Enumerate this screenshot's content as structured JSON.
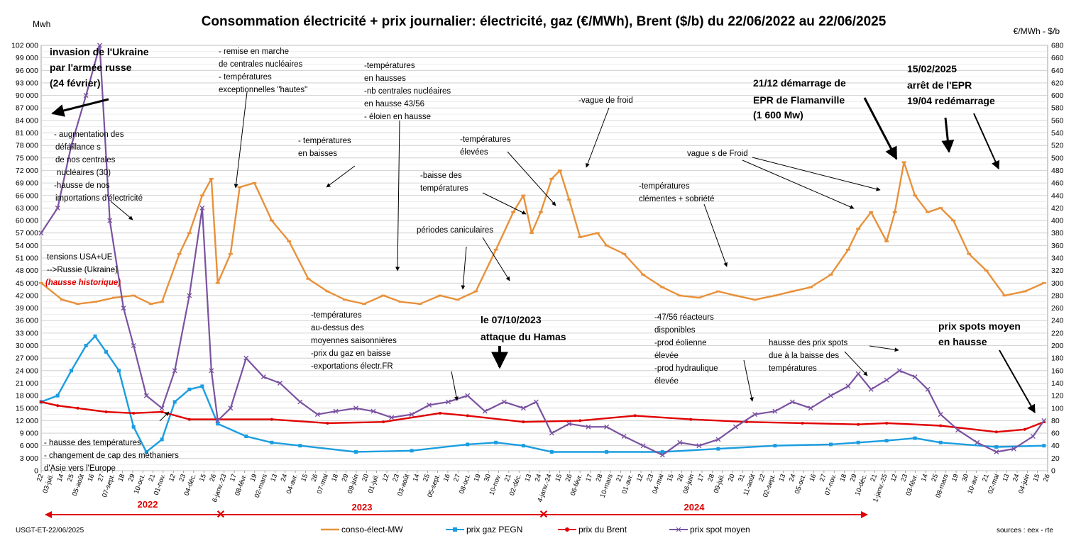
{
  "chart_data": {
    "type": "line",
    "title": "Consommation électricité + prix journalier: électricité, gaz (€/MWh), Brent ($/b) du 22/06/2022 au  22/06/2025",
    "ylabel_left": "Mwh",
    "ylabel_right": "€/MWh - $/b",
    "ylim_left": [
      0,
      102000
    ],
    "ylim_right": [
      0,
      680
    ],
    "yticks_left": [
      "0",
      "3 000",
      "6 000",
      "9 000",
      "12 000",
      "15 000",
      "18 000",
      "21 000",
      "24 000",
      "27 000",
      "30 000",
      "33 000",
      "36 000",
      "39 000",
      "42 000",
      "45 000",
      "48 000",
      "51 000",
      "54 000",
      "57 000",
      "60 000",
      "63 000",
      "66 000",
      "69 000",
      "72 000",
      "75 000",
      "78 000",
      "81 000",
      "84 000",
      "87 000",
      "90 000",
      "93 000",
      "96 000",
      "99 000",
      "102 000"
    ],
    "yticks_right": [
      "0",
      "20",
      "40",
      "60",
      "80",
      "100",
      "120",
      "140",
      "160",
      "180",
      "200",
      "220",
      "240",
      "260",
      "280",
      "300",
      "320",
      "340",
      "360",
      "380",
      "400",
      "420",
      "440",
      "460",
      "480",
      "500",
      "520",
      "540",
      "560",
      "580",
      "600",
      "620",
      "640",
      "660",
      "680"
    ],
    "xticks": [
      "22",
      "03-juil.",
      "14",
      "25",
      "05-août",
      "16",
      "27",
      "07-sept.",
      "18",
      "29",
      "10-oct.",
      "21",
      "01-nov.",
      "12",
      "23",
      "04-déc.",
      "15",
      "26",
      "6-janv.-23",
      "17",
      "08-févr.",
      "19",
      "02-mars",
      "13",
      "24",
      "04-avr.",
      "15",
      "26",
      "07-mai",
      "18",
      "29",
      "09-juin",
      "20",
      "01-juil.",
      "12",
      "23",
      "03-août",
      "14",
      "25",
      "05-sept.",
      "16",
      "27",
      "08-oct.",
      "19",
      "30",
      "10-nov.",
      "21",
      "02-déc.",
      "13",
      "24",
      "4-janv.-24",
      "15",
      "26",
      "06-févr.",
      "17",
      "28",
      "10-mars",
      "21",
      "01-avr.",
      "12",
      "23",
      "04-mai",
      "15",
      "26",
      "06-juin",
      "17",
      "28",
      "09-juil.",
      "20",
      "31",
      "11-août",
      "22",
      "02-sept.",
      "13",
      "24",
      "05-oct.",
      "16",
      "27",
      "07-nov.",
      "18",
      "29",
      "10-déc.",
      "21",
      "1-janv.-25",
      "12",
      "23",
      "03-févr.",
      "14",
      "25",
      "08-mars",
      "19",
      "30",
      "10-avr.",
      "21",
      "02-mai",
      "13",
      "24",
      "04-juin",
      "15",
      "26"
    ],
    "years": [
      "2022",
      "2023",
      "2024"
    ],
    "grid": true,
    "legend_position": "bottom",
    "series": [
      {
        "name": "conso-élect-MW",
        "axis": "left",
        "color": "#e8913a",
        "marker": "dash",
        "x": [
          "22/06/2022",
          "15/07/2022",
          "01/08/2022",
          "20/08/2022",
          "10/09/2022",
          "01/10/2022",
          "20/10/2022",
          "01/11/2022",
          "20/11/2022",
          "01/12/2022",
          "15/12/2022",
          "25/12/2022",
          "01/01/2023",
          "15/01/2023",
          "25/01/2023",
          "10/02/2023",
          "01/03/2023",
          "20/03/2023",
          "10/04/2023",
          "01/05/2023",
          "20/05/2023",
          "10/06/2023",
          "01/07/2023",
          "20/07/2023",
          "10/08/2023",
          "01/09/2023",
          "20/09/2023",
          "10/10/2023",
          "01/11/2023",
          "20/11/2023",
          "01/12/2023",
          "10/12/2023",
          "20/12/2023",
          "01/01/2024",
          "10/01/2024",
          "20/01/2024",
          "01/02/2024",
          "20/02/2024",
          "01/03/2024",
          "20/03/2024",
          "10/04/2024",
          "01/05/2024",
          "20/05/2024",
          "10/06/2024",
          "01/07/2024",
          "20/07/2024",
          "10/08/2024",
          "01/09/2024",
          "20/09/2024",
          "10/10/2024",
          "01/11/2024",
          "20/11/2024",
          "01/12/2024",
          "15/12/2024",
          "01/01/2025",
          "10/01/2025",
          "20/01/2025",
          "01/02/2025",
          "15/02/2025",
          "01/03/2025",
          "15/03/2025",
          "01/04/2025",
          "20/04/2025",
          "10/05/2025",
          "01/06/2025",
          "22/06/2025"
        ],
        "values": [
          45000,
          41000,
          40000,
          40500,
          41500,
          42000,
          40000,
          40500,
          52000,
          57000,
          66000,
          70000,
          45000,
          52000,
          68000,
          69000,
          60000,
          55000,
          46000,
          43000,
          41000,
          40000,
          42000,
          40500,
          40000,
          42000,
          41000,
          43000,
          53000,
          62000,
          66000,
          57000,
          62000,
          70000,
          72000,
          65000,
          56000,
          57000,
          54000,
          52000,
          47000,
          44000,
          42000,
          41500,
          43000,
          42000,
          41000,
          42000,
          43000,
          44000,
          47000,
          53000,
          58000,
          62000,
          55000,
          62000,
          74000,
          66000,
          62000,
          63000,
          60000,
          52000,
          48000,
          42000,
          43000,
          45000
        ]
      },
      {
        "name": "prix gaz PEGN",
        "axis": "right",
        "color": "#1a9de0",
        "marker": "square",
        "x": [
          "22/06/2022",
          "10/07/2022",
          "25/07/2022",
          "10/08/2022",
          "20/08/2022",
          "01/09/2022",
          "15/09/2022",
          "01/10/2022",
          "15/10/2022",
          "01/11/2022",
          "15/11/2022",
          "01/12/2022",
          "15/12/2022",
          "01/01/2023",
          "01/02/2023",
          "01/03/2023",
          "01/04/2023",
          "01/06/2023",
          "01/08/2023",
          "01/10/2023",
          "01/11/2023",
          "01/12/2023",
          "01/01/2024",
          "01/03/2024",
          "01/05/2024",
          "01/07/2024",
          "01/09/2024",
          "01/11/2024",
          "01/12/2024",
          "01/01/2025",
          "01/02/2025",
          "01/03/2025",
          "01/05/2025",
          "22/06/2025"
        ],
        "values": [
          110,
          120,
          160,
          200,
          215,
          190,
          160,
          70,
          30,
          50,
          110,
          130,
          135,
          75,
          55,
          45,
          40,
          30,
          32,
          42,
          45,
          40,
          30,
          30,
          30,
          35,
          40,
          42,
          45,
          48,
          52,
          45,
          38,
          40
        ]
      },
      {
        "name": "prix du Brent",
        "axis": "right",
        "color": "#e00000",
        "marker": "dot",
        "x": [
          "22/06/2022",
          "10/07/2022",
          "01/08/2022",
          "01/09/2022",
          "01/10/2022",
          "01/11/2022",
          "01/12/2022",
          "01/01/2023",
          "01/03/2023",
          "01/05/2023",
          "01/07/2023",
          "01/09/2023",
          "01/10/2023",
          "01/12/2023",
          "01/02/2024",
          "01/04/2024",
          "01/06/2024",
          "01/08/2024",
          "01/10/2024",
          "01/12/2024",
          "01/01/2025",
          "01/03/2025",
          "01/05/2025",
          "01/06/2025",
          "22/06/2025"
        ],
        "values": [
          110,
          104,
          100,
          94,
          92,
          94,
          82,
          82,
          82,
          76,
          78,
          92,
          88,
          78,
          80,
          88,
          82,
          78,
          76,
          74,
          76,
          72,
          62,
          66,
          78
        ]
      },
      {
        "name": "prix spot moyen",
        "axis": "right",
        "color": "#7a52a0",
        "marker": "cross",
        "x": [
          "22/06/2022",
          "10/07/2022",
          "25/07/2022",
          "10/08/2022",
          "25/08/2022",
          "05/09/2022",
          "20/09/2022",
          "01/10/2022",
          "15/10/2022",
          "01/11/2022",
          "15/11/2022",
          "01/12/2022",
          "15/12/2022",
          "25/12/2022",
          "01/01/2023",
          "15/01/2023",
          "01/02/2023",
          "20/02/2023",
          "10/03/2023",
          "01/04/2023",
          "20/04/2023",
          "10/05/2023",
          "01/06/2023",
          "20/06/2023",
          "10/07/2023",
          "01/08/2023",
          "20/08/2023",
          "10/09/2023",
          "01/10/2023",
          "20/10/2023",
          "10/11/2023",
          "01/12/2023",
          "15/12/2023",
          "01/01/2024",
          "20/01/2024",
          "10/02/2024",
          "01/03/2024",
          "20/03/2024",
          "10/04/2024",
          "01/05/2024",
          "20/05/2024",
          "10/06/2024",
          "01/07/2024",
          "20/07/2024",
          "10/08/2024",
          "01/09/2024",
          "20/09/2024",
          "10/10/2024",
          "01/11/2024",
          "20/11/2024",
          "01/12/2024",
          "15/12/2024",
          "01/01/2025",
          "15/01/2025",
          "01/02/2025",
          "15/02/2025",
          "01/03/2025",
          "20/03/2025",
          "10/04/2025",
          "01/05/2025",
          "20/05/2025",
          "10/06/2025",
          "22/06/2025"
        ],
        "values": [
          380,
          420,
          520,
          600,
          680,
          400,
          260,
          200,
          120,
          100,
          160,
          280,
          420,
          160,
          80,
          100,
          180,
          150,
          140,
          110,
          90,
          95,
          100,
          95,
          85,
          90,
          105,
          110,
          120,
          95,
          110,
          100,
          110,
          60,
          75,
          70,
          70,
          55,
          40,
          25,
          45,
          40,
          50,
          70,
          90,
          95,
          110,
          100,
          120,
          135,
          155,
          130,
          145,
          160,
          150,
          130,
          90,
          65,
          45,
          30,
          35,
          55,
          80
        ]
      }
    ],
    "annotations": [
      "invasion de l'Ukraine",
      "par l'armée russe",
      "(24 février)"
    ]
  },
  "annotations": {
    "ukraine": [
      "invasion de l'Ukraine",
      "par l'armée russe",
      "(24 février)"
    ],
    "defaillances": [
      "- augmentation  des",
      "défaillance s",
      "de nos centrales",
      "nucléaires (30)",
      "-hausse de nos",
      "importations d'électricité"
    ],
    "tensions": [
      "tensions USA+UE",
      "-->Russie (Ukraine)"
    ],
    "hausse_historique": "(hausse historique)",
    "methaniers": [
      "- hausse des températures",
      "- changement de cap des méthaniers",
      "d'Asie vers l'Europe"
    ],
    "nucleaire_remise": [
      "- remise en marche",
      "de centrales nucléaires",
      "- températures",
      "exceptionnelles \"hautes\""
    ],
    "temp_baisses": [
      "- températures",
      "en baisses"
    ],
    "temp_hausses": [
      "-températures",
      "en hausses",
      "-nb centrales nucléaires",
      "en hausse 43/56",
      "- éloien en hausse"
    ],
    "temp_elevees": [
      "-températures",
      "élevées"
    ],
    "baisse_temp": [
      "-baisse des",
      "températures"
    ],
    "caniculaires": "périodes caniculaires",
    "vague_froid": "-vague de froid",
    "temp_dessus": [
      "-températures",
      "au-dessus des",
      "moyennes saisonnières",
      "-prix du gaz en baisse",
      "-exportations électr.FR"
    ],
    "hamas": [
      "le 07/10/2023",
      "attaque du Hamas"
    ],
    "temp_clementes": [
      "-températures",
      "clémentes + sobriété"
    ],
    "reacteurs": [
      "-47/56 réacteurs",
      "disponibles",
      "-prod éolienne",
      "élevée",
      "-prod hydraulique",
      "élevée"
    ],
    "vagues_froid": "vague s de Froid",
    "epr": [
      "21/12 démarrage de",
      "EPR de Flamanville",
      "(1 600 Mw)"
    ],
    "epr_arret": [
      "15/02/2025",
      "arrêt de  l'EPR",
      "19/04 redémarrage"
    ],
    "spots_baisse": [
      "hausse des prix spots",
      "due à la baisse des",
      "températures"
    ],
    "spots_hausse": [
      "prix spots moyen",
      "en hausse"
    ]
  },
  "footer": {
    "left": "USGT-ET-22/06/2025",
    "right": "sources : eex - rte"
  },
  "colors": {
    "grid": "#c8c8c8",
    "plot_bg": "#ffffff",
    "arrow": "#000000",
    "year_arrow": "#e00000"
  }
}
